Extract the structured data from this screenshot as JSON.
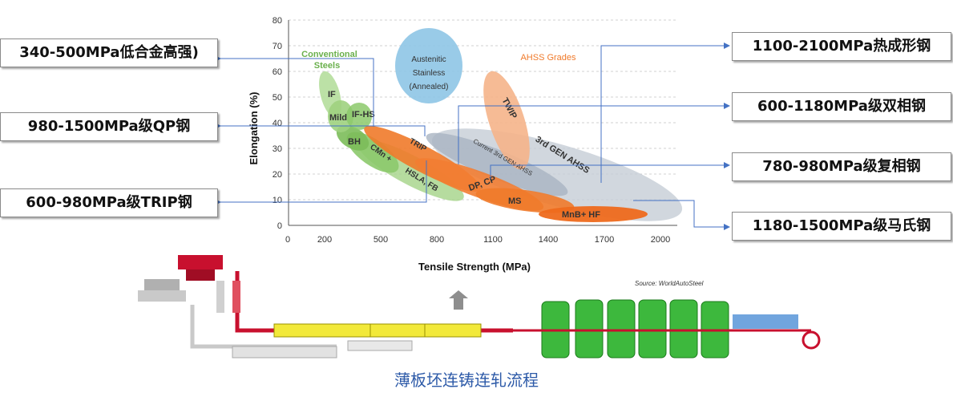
{
  "chart": {
    "ylabel": "Elongation (%)",
    "xlabel": "Tensile Strength (MPa)",
    "x_ticks": [
      "0",
      "200",
      "500",
      "800",
      "1100",
      "1400",
      "1700",
      "2000"
    ],
    "y_ticks": [
      "0",
      "10",
      "20",
      "30",
      "40",
      "50",
      "60",
      "70",
      "80"
    ],
    "source": "Source:  WorldAutoSteel"
  },
  "regions": {
    "conventional_title": "Conventional",
    "conventional_title2": "Steels",
    "austenitic_1": "Austenitic",
    "austenitic_2": "Stainless",
    "austenitic_3": "(Annealed)",
    "ahss_title": "AHSS Grades",
    "if": "IF",
    "mild": "Mild",
    "ifhs": "IF-HS",
    "bh": "BH",
    "cmn": "CMn +",
    "hsla": "HSLA, FB",
    "trip": "TRIP",
    "dpcp": "DP, CP",
    "ms": "MS",
    "mnb": "MnB+ HF",
    "twip": "TWIP",
    "third_gen": "3rd GEN AHSS",
    "current_third": "Current 3rd GEN AHSS"
  },
  "colors": {
    "green": "#8cc96b",
    "orange": "#f07a2a",
    "light_orange": "#f5b48a",
    "blue": "#8ec5e6",
    "grey": "#c8d0da",
    "arrow": "#4472c4"
  },
  "callouts": {
    "left_1": "340-500MPa低合金高强)",
    "left_2": "980-1500MPa级QP钢",
    "left_3": "600-980MPa级TRIP钢",
    "right_1": "1100-2100MPa热成形钢",
    "right_2": "600-1180MPa级双相钢",
    "right_3": "780-980MPa级复相钢",
    "right_4": "1180-1500MPa级马氏钢"
  },
  "caption": "薄板坯连铸连轧流程"
}
